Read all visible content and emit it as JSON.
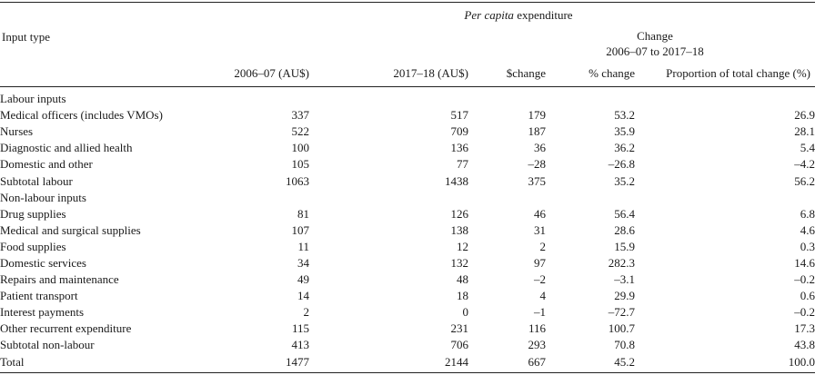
{
  "header": {
    "input_type": "Input type",
    "per_capita_prefix": "Per capita",
    "per_capita_suffix": " expenditure",
    "change_line1": "Change",
    "change_line2": "2006–07 to 2017–18",
    "columns": [
      "2006–07 (AU$)",
      "2017–18 (AU$)",
      "$change",
      "% change",
      "Proportion of total change (%)"
    ]
  },
  "rows": [
    {
      "label": "Labour inputs",
      "values": [
        "",
        "",
        "",
        "",
        ""
      ]
    },
    {
      "label": "Medical officers (includes VMOs)",
      "values": [
        "337",
        "517",
        "179",
        "53.2",
        "26.9"
      ]
    },
    {
      "label": "Nurses",
      "values": [
        "522",
        "709",
        "187",
        "35.9",
        "28.1"
      ]
    },
    {
      "label": "Diagnostic and allied health",
      "values": [
        "100",
        "136",
        "36",
        "36.2",
        "5.4"
      ]
    },
    {
      "label": "Domestic and other",
      "values": [
        "105",
        "77",
        "–28",
        "–26.8",
        "–4.2"
      ]
    },
    {
      "label": "Subtotal labour",
      "values": [
        "1063",
        "1438",
        "375",
        "35.2",
        "56.2"
      ]
    },
    {
      "label": "Non-labour inputs",
      "values": [
        "",
        "",
        "",
        "",
        ""
      ]
    },
    {
      "label": "Drug supplies",
      "values": [
        "81",
        "126",
        "46",
        "56.4",
        "6.8"
      ]
    },
    {
      "label": "Medical and surgical supplies",
      "values": [
        "107",
        "138",
        "31",
        "28.6",
        "4.6"
      ]
    },
    {
      "label": "Food supplies",
      "values": [
        "11",
        "12",
        "2",
        "15.9",
        "0.3"
      ]
    },
    {
      "label": "Domestic services",
      "values": [
        "34",
        "132",
        "97",
        "282.3",
        "14.6"
      ]
    },
    {
      "label": "Repairs and maintenance",
      "values": [
        "49",
        "48",
        "–2",
        "–3.1",
        "–0.2"
      ]
    },
    {
      "label": "Patient transport",
      "values": [
        "14",
        "18",
        "4",
        "29.9",
        "0.6"
      ]
    },
    {
      "label": "Interest payments",
      "values": [
        "2",
        "0",
        "–1",
        "–72.7",
        "–0.2"
      ]
    },
    {
      "label": "Other recurrent expenditure",
      "values": [
        "115",
        "231",
        "116",
        "100.7",
        "17.3"
      ]
    },
    {
      "label": "Subtotal non-labour",
      "values": [
        "413",
        "706",
        "293",
        "70.8",
        "43.8"
      ]
    },
    {
      "label": "Total",
      "values": [
        "1477",
        "2144",
        "667",
        "45.2",
        "100.0"
      ]
    }
  ]
}
